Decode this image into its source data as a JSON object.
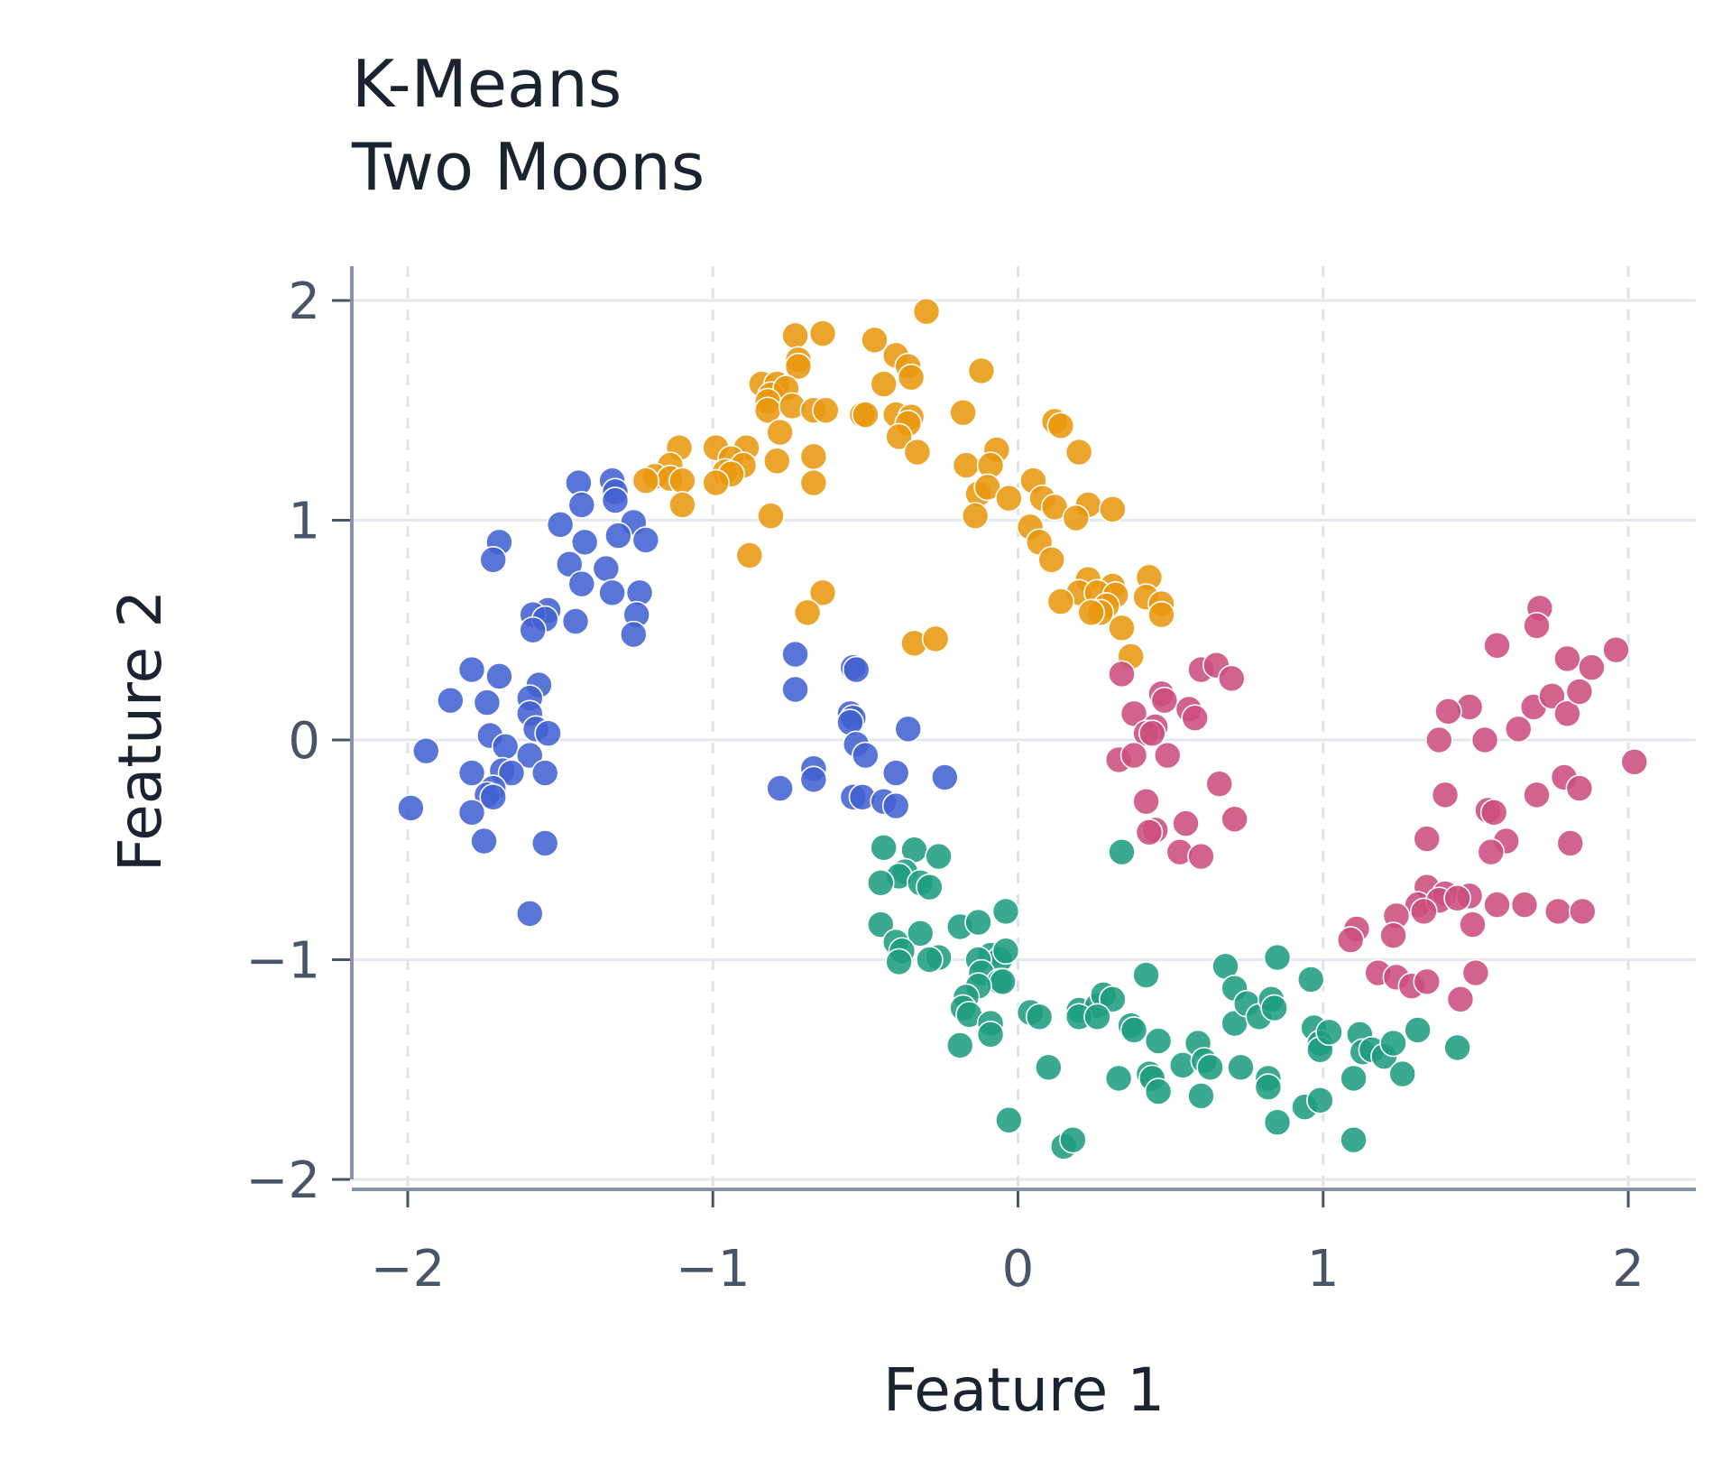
{
  "chart_data": {
    "type": "scatter",
    "title": "K-Means\nTwo Moons",
    "title_lines": [
      "K-Means",
      "Two Moons"
    ],
    "xlabel": "Feature 1",
    "ylabel": "Feature 2",
    "xlim": [
      -2.2,
      2.25
    ],
    "ylim": [
      -2.05,
      2.15
    ],
    "xticks": [
      -2,
      -1,
      0,
      1,
      2
    ],
    "yticks": [
      -2,
      -1,
      0,
      1,
      2
    ],
    "xtick_labels": [
      "−2",
      "−1",
      "0",
      "1",
      "2"
    ],
    "ytick_labels": [
      "−2",
      "−1",
      "0",
      "1",
      "2"
    ],
    "grid": true,
    "legend": "none",
    "series": [
      {
        "color": "#4262d1",
        "points": [
          [
            -1.33,
            1.18
          ],
          [
            -1.32,
            1.13
          ],
          [
            -1.32,
            1.09
          ],
          [
            -1.44,
            1.17
          ],
          [
            -1.43,
            1.07
          ],
          [
            -1.26,
            0.99
          ],
          [
            -1.5,
            0.98
          ],
          [
            -1.22,
            0.91
          ],
          [
            -1.31,
            0.93
          ],
          [
            -1.42,
            0.9
          ],
          [
            -1.7,
            0.9
          ],
          [
            -1.72,
            0.82
          ],
          [
            -1.47,
            0.8
          ],
          [
            -1.35,
            0.78
          ],
          [
            -1.43,
            0.71
          ],
          [
            -1.24,
            0.67
          ],
          [
            -1.33,
            0.67
          ],
          [
            -1.25,
            0.57
          ],
          [
            -1.54,
            0.59
          ],
          [
            -1.59,
            0.57
          ],
          [
            -1.55,
            0.55
          ],
          [
            -1.45,
            0.54
          ],
          [
            -1.26,
            0.48
          ],
          [
            -1.59,
            0.5
          ],
          [
            -1.79,
            0.32
          ],
          [
            -1.7,
            0.29
          ],
          [
            -1.57,
            0.25
          ],
          [
            -1.86,
            0.18
          ],
          [
            -1.74,
            0.17
          ],
          [
            -1.6,
            0.19
          ],
          [
            -1.6,
            0.12
          ],
          [
            -1.58,
            0.05
          ],
          [
            -1.54,
            0.03
          ],
          [
            -1.73,
            0.02
          ],
          [
            -1.68,
            -0.03
          ],
          [
            -1.94,
            -0.05
          ],
          [
            -1.6,
            -0.07
          ],
          [
            -1.79,
            -0.15
          ],
          [
            -1.69,
            -0.14
          ],
          [
            -1.66,
            -0.15
          ],
          [
            -1.55,
            -0.15
          ],
          [
            -1.72,
            -0.22
          ],
          [
            -1.74,
            -0.25
          ],
          [
            -1.72,
            -0.26
          ],
          [
            -1.99,
            -0.31
          ],
          [
            -1.79,
            -0.33
          ],
          [
            -1.75,
            -0.46
          ],
          [
            -1.55,
            -0.47
          ],
          [
            -1.6,
            -0.79
          ],
          [
            -0.73,
            0.39
          ],
          [
            -0.54,
            0.33
          ],
          [
            -0.53,
            0.32
          ],
          [
            -0.73,
            0.23
          ],
          [
            -0.55,
            0.12
          ],
          [
            -0.54,
            0.1
          ],
          [
            -0.55,
            0.08
          ],
          [
            -0.36,
            0.05
          ],
          [
            -0.53,
            -0.02
          ],
          [
            -0.5,
            -0.07
          ],
          [
            -0.67,
            -0.13
          ],
          [
            -0.4,
            -0.15
          ],
          [
            -0.24,
            -0.17
          ],
          [
            -0.67,
            -0.18
          ],
          [
            -0.78,
            -0.22
          ],
          [
            -0.54,
            -0.26
          ],
          [
            -0.51,
            -0.26
          ],
          [
            -0.44,
            -0.28
          ],
          [
            -0.4,
            -0.3
          ]
        ]
      },
      {
        "color": "#e9980f",
        "points": [
          [
            -0.3,
            1.95
          ],
          [
            -0.73,
            1.84
          ],
          [
            -0.64,
            1.85
          ],
          [
            -0.47,
            1.82
          ],
          [
            -0.4,
            1.75
          ],
          [
            -0.36,
            1.7
          ],
          [
            -0.72,
            1.73
          ],
          [
            -0.72,
            1.7
          ],
          [
            -0.12,
            1.68
          ],
          [
            -0.35,
            1.65
          ],
          [
            -0.84,
            1.62
          ],
          [
            -0.79,
            1.62
          ],
          [
            -0.81,
            1.57
          ],
          [
            -0.44,
            1.62
          ],
          [
            -0.76,
            1.6
          ],
          [
            -0.82,
            1.54
          ],
          [
            -0.82,
            1.5
          ],
          [
            -0.74,
            1.52
          ],
          [
            -0.67,
            1.5
          ],
          [
            -0.63,
            1.5
          ],
          [
            -0.51,
            1.48
          ],
          [
            -0.5,
            1.48
          ],
          [
            -0.4,
            1.48
          ],
          [
            -0.35,
            1.47
          ],
          [
            -0.36,
            1.44
          ],
          [
            -0.18,
            1.49
          ],
          [
            0.12,
            1.45
          ],
          [
            0.14,
            1.43
          ],
          [
            -0.78,
            1.4
          ],
          [
            -0.39,
            1.38
          ],
          [
            -1.11,
            1.33
          ],
          [
            -0.99,
            1.33
          ],
          [
            -0.89,
            1.33
          ],
          [
            -0.33,
            1.31
          ],
          [
            -0.07,
            1.32
          ],
          [
            0.2,
            1.31
          ],
          [
            -0.94,
            1.28
          ],
          [
            -0.79,
            1.27
          ],
          [
            -0.67,
            1.29
          ],
          [
            -1.14,
            1.25
          ],
          [
            -0.9,
            1.25
          ],
          [
            -0.17,
            1.25
          ],
          [
            -0.09,
            1.25
          ],
          [
            -0.96,
            1.22
          ],
          [
            -0.94,
            1.21
          ],
          [
            -1.19,
            1.2
          ],
          [
            -1.14,
            1.19
          ],
          [
            -1.22,
            1.18
          ],
          [
            -1.1,
            1.18
          ],
          [
            -0.99,
            1.17
          ],
          [
            -0.67,
            1.17
          ],
          [
            0.05,
            1.18
          ],
          [
            -0.13,
            1.12
          ],
          [
            -0.1,
            1.15
          ],
          [
            -0.03,
            1.1
          ],
          [
            0.08,
            1.1
          ],
          [
            0.12,
            1.06
          ],
          [
            0.23,
            1.07
          ],
          [
            0.31,
            1.05
          ],
          [
            -1.1,
            1.07
          ],
          [
            -0.81,
            1.02
          ],
          [
            -0.14,
            1.02
          ],
          [
            0.19,
            1.01
          ],
          [
            0.04,
            0.97
          ],
          [
            0.07,
            0.9
          ],
          [
            0.11,
            0.82
          ],
          [
            -0.88,
            0.84
          ],
          [
            0.23,
            0.73
          ],
          [
            0.31,
            0.7
          ],
          [
            0.43,
            0.74
          ],
          [
            0.2,
            0.67
          ],
          [
            0.26,
            0.67
          ],
          [
            0.32,
            0.66
          ],
          [
            0.42,
            0.65
          ],
          [
            0.47,
            0.62
          ],
          [
            0.14,
            0.63
          ],
          [
            0.29,
            0.61
          ],
          [
            0.27,
            0.58
          ],
          [
            0.24,
            0.58
          ],
          [
            0.47,
            0.57
          ],
          [
            -0.64,
            0.67
          ],
          [
            -0.69,
            0.58
          ],
          [
            -0.34,
            0.44
          ],
          [
            -0.27,
            0.46
          ],
          [
            0.34,
            0.51
          ],
          [
            0.37,
            0.38
          ]
        ]
      },
      {
        "color": "#cc4d7e",
        "points": [
          [
            1.71,
            0.6
          ],
          [
            1.7,
            0.52
          ],
          [
            1.96,
            0.41
          ],
          [
            1.57,
            0.43
          ],
          [
            1.8,
            0.37
          ],
          [
            1.88,
            0.33
          ],
          [
            1.48,
            0.15
          ],
          [
            1.69,
            0.15
          ],
          [
            1.75,
            0.2
          ],
          [
            1.8,
            0.12
          ],
          [
            1.84,
            0.22
          ],
          [
            1.41,
            0.13
          ],
          [
            1.64,
            0.05
          ],
          [
            1.38,
            0.0
          ],
          [
            1.53,
            0.0
          ],
          [
            2.02,
            -0.1
          ],
          [
            1.79,
            -0.17
          ],
          [
            1.84,
            -0.22
          ],
          [
            1.4,
            -0.25
          ],
          [
            1.7,
            -0.25
          ],
          [
            1.54,
            -0.32
          ],
          [
            1.56,
            -0.33
          ],
          [
            1.34,
            -0.45
          ],
          [
            1.6,
            -0.46
          ],
          [
            1.81,
            -0.47
          ],
          [
            1.55,
            -0.51
          ],
          [
            1.34,
            -0.67
          ],
          [
            1.4,
            -0.7
          ],
          [
            1.48,
            -0.71
          ],
          [
            1.31,
            -0.75
          ],
          [
            1.38,
            -0.73
          ],
          [
            1.33,
            -0.78
          ],
          [
            1.44,
            -0.72
          ],
          [
            1.57,
            -0.75
          ],
          [
            1.66,
            -0.75
          ],
          [
            1.77,
            -0.78
          ],
          [
            1.85,
            -0.78
          ],
          [
            1.24,
            -0.8
          ],
          [
            1.11,
            -0.86
          ],
          [
            1.09,
            -0.91
          ],
          [
            1.23,
            -0.89
          ],
          [
            1.49,
            -0.84
          ],
          [
            1.18,
            -1.06
          ],
          [
            1.24,
            -1.08
          ],
          [
            1.29,
            -1.12
          ],
          [
            1.34,
            -1.1
          ],
          [
            1.5,
            -1.06
          ],
          [
            1.45,
            -1.18
          ],
          [
            0.34,
            0.3
          ],
          [
            0.6,
            0.32
          ],
          [
            0.65,
            0.34
          ],
          [
            0.7,
            0.28
          ],
          [
            0.47,
            0.21
          ],
          [
            0.48,
            0.18
          ],
          [
            0.38,
            0.12
          ],
          [
            0.56,
            0.14
          ],
          [
            0.45,
            0.06
          ],
          [
            0.58,
            0.1
          ],
          [
            0.42,
            0.03
          ],
          [
            0.44,
            0.03
          ],
          [
            0.49,
            -0.07
          ],
          [
            0.33,
            -0.09
          ],
          [
            0.38,
            -0.07
          ],
          [
            0.66,
            -0.2
          ],
          [
            0.42,
            -0.28
          ],
          [
            0.55,
            -0.38
          ],
          [
            0.71,
            -0.36
          ],
          [
            0.45,
            -0.41
          ],
          [
            0.43,
            -0.42
          ],
          [
            0.53,
            -0.51
          ],
          [
            0.6,
            -0.53
          ]
        ]
      },
      {
        "color": "#1f9d7f",
        "points": [
          [
            -0.44,
            -0.49
          ],
          [
            -0.34,
            -0.5
          ],
          [
            -0.26,
            -0.53
          ],
          [
            -0.37,
            -0.6
          ],
          [
            -0.39,
            -0.62
          ],
          [
            -0.45,
            -0.65
          ],
          [
            -0.32,
            -0.65
          ],
          [
            -0.29,
            -0.67
          ],
          [
            -0.45,
            -0.84
          ],
          [
            -0.32,
            -0.88
          ],
          [
            -0.4,
            -0.92
          ],
          [
            -0.19,
            -0.85
          ],
          [
            -0.13,
            -0.83
          ],
          [
            -0.04,
            -0.78
          ],
          [
            -0.38,
            -0.96
          ],
          [
            -0.26,
            -0.99
          ],
          [
            -0.29,
            -1.0
          ],
          [
            -0.39,
            -1.01
          ],
          [
            -0.09,
            -0.98
          ],
          [
            -0.06,
            -1.0
          ],
          [
            -0.04,
            -0.96
          ],
          [
            -0.13,
            -1.0
          ],
          [
            -0.12,
            -1.06
          ],
          [
            -0.06,
            -1.1
          ],
          [
            -0.05,
            -1.1
          ],
          [
            -0.13,
            -1.12
          ],
          [
            -0.17,
            -1.17
          ],
          [
            -0.18,
            -1.22
          ],
          [
            -0.16,
            -1.25
          ],
          [
            -0.09,
            -1.29
          ],
          [
            -0.09,
            -1.34
          ],
          [
            -0.19,
            -1.39
          ],
          [
            0.04,
            -1.24
          ],
          [
            0.07,
            -1.26
          ],
          [
            0.2,
            -1.23
          ],
          [
            0.26,
            -1.21
          ],
          [
            0.28,
            -1.16
          ],
          [
            0.31,
            -1.18
          ],
          [
            0.2,
            -1.26
          ],
          [
            0.26,
            -1.26
          ],
          [
            0.37,
            -1.3
          ],
          [
            0.38,
            -1.32
          ],
          [
            0.42,
            -1.07
          ],
          [
            0.34,
            -0.51
          ],
          [
            0.1,
            -1.49
          ],
          [
            0.33,
            -1.54
          ],
          [
            0.43,
            -1.52
          ],
          [
            0.44,
            -1.54
          ],
          [
            0.46,
            -1.6
          ],
          [
            0.46,
            -1.37
          ],
          [
            0.54,
            -1.48
          ],
          [
            0.59,
            -1.38
          ],
          [
            0.61,
            -1.46
          ],
          [
            0.63,
            -1.49
          ],
          [
            0.6,
            -1.62
          ],
          [
            0.68,
            -1.03
          ],
          [
            0.71,
            -1.13
          ],
          [
            0.71,
            -1.29
          ],
          [
            0.73,
            -1.49
          ],
          [
            0.75,
            -1.2
          ],
          [
            0.79,
            -1.26
          ],
          [
            0.82,
            -1.54
          ],
          [
            0.82,
            -1.58
          ],
          [
            0.83,
            -1.18
          ],
          [
            0.84,
            -1.22
          ],
          [
            0.85,
            -0.99
          ],
          [
            0.85,
            -1.74
          ],
          [
            0.94,
            -1.67
          ],
          [
            0.96,
            -1.09
          ],
          [
            0.97,
            -1.31
          ],
          [
            0.99,
            -1.38
          ],
          [
            0.99,
            -1.41
          ],
          [
            0.99,
            -1.64
          ],
          [
            1.02,
            -1.33
          ],
          [
            1.1,
            -1.54
          ],
          [
            1.1,
            -1.82
          ],
          [
            1.12,
            -1.34
          ],
          [
            1.13,
            -1.42
          ],
          [
            1.16,
            -1.41
          ],
          [
            1.2,
            -1.44
          ],
          [
            1.23,
            -1.38
          ],
          [
            1.26,
            -1.52
          ],
          [
            1.31,
            -1.32
          ],
          [
            1.44,
            -1.4
          ],
          [
            -0.03,
            -1.73
          ],
          [
            0.15,
            -1.85
          ],
          [
            0.18,
            -1.82
          ]
        ]
      }
    ]
  }
}
